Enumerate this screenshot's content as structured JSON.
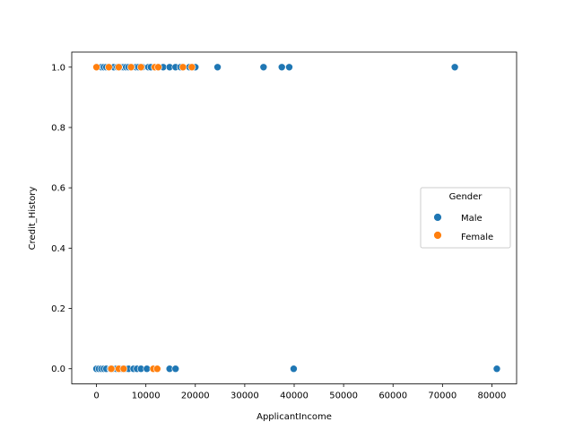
{
  "chart_data": {
    "type": "scatter",
    "title": "",
    "xlabel": "ApplicantIncome",
    "ylabel": "Credit_History",
    "xlim": [
      -5000,
      85000
    ],
    "ylim": [
      -0.05,
      1.05
    ],
    "xticks": [
      0,
      10000,
      20000,
      30000,
      40000,
      50000,
      60000,
      70000,
      80000
    ],
    "xtick_labels": [
      "0",
      "10000",
      "20000",
      "30000",
      "40000",
      "50000",
      "60000",
      "70000",
      "80000"
    ],
    "yticks": [
      0.0,
      0.2,
      0.4,
      0.6,
      0.8,
      1.0
    ],
    "ytick_labels": [
      "0.0",
      "0.2",
      "0.4",
      "0.6",
      "0.8",
      "1.0"
    ],
    "grid": false,
    "legend": {
      "title": "Gender",
      "placement": "center-right",
      "entries": [
        "Male",
        "Female"
      ]
    },
    "series": [
      {
        "name": "Male",
        "color": "#1f77b4",
        "points": [
          [
            1000,
            1
          ],
          [
            1500,
            1
          ],
          [
            2000,
            1
          ],
          [
            2500,
            1
          ],
          [
            3500,
            1
          ],
          [
            4200,
            1
          ],
          [
            5000,
            1
          ],
          [
            5500,
            1
          ],
          [
            6000,
            1
          ],
          [
            6500,
            1
          ],
          [
            7200,
            1
          ],
          [
            8000,
            1
          ],
          [
            8500,
            1
          ],
          [
            9300,
            1
          ],
          [
            10500,
            1
          ],
          [
            11000,
            1
          ],
          [
            12500,
            1
          ],
          [
            13500,
            1
          ],
          [
            14800,
            1
          ],
          [
            16000,
            1
          ],
          [
            17000,
            1
          ],
          [
            18800,
            1
          ],
          [
            20000,
            1
          ],
          [
            24500,
            1
          ],
          [
            33800,
            1
          ],
          [
            37500,
            1
          ],
          [
            39000,
            1
          ],
          [
            72500,
            1
          ],
          [
            0,
            0
          ],
          [
            500,
            0
          ],
          [
            1000,
            0
          ],
          [
            1500,
            0
          ],
          [
            2000,
            0
          ],
          [
            2800,
            0
          ],
          [
            3300,
            0
          ],
          [
            4000,
            0
          ],
          [
            5000,
            0
          ],
          [
            5800,
            0
          ],
          [
            6500,
            0
          ],
          [
            7500,
            0
          ],
          [
            8200,
            0
          ],
          [
            9000,
            0
          ],
          [
            10200,
            0
          ],
          [
            14800,
            0
          ],
          [
            16000,
            0
          ],
          [
            39900,
            0
          ],
          [
            81000,
            0
          ]
        ]
      },
      {
        "name": "Female",
        "color": "#ff7f0e",
        "points": [
          [
            0,
            1
          ],
          [
            2500,
            1
          ],
          [
            4500,
            1
          ],
          [
            7000,
            1
          ],
          [
            9000,
            1
          ],
          [
            11800,
            1
          ],
          [
            12500,
            1
          ],
          [
            17500,
            1
          ],
          [
            19300,
            1
          ],
          [
            3000,
            0
          ],
          [
            4500,
            0
          ],
          [
            5500,
            0
          ],
          [
            11500,
            0
          ],
          [
            12300,
            0
          ]
        ]
      }
    ]
  }
}
